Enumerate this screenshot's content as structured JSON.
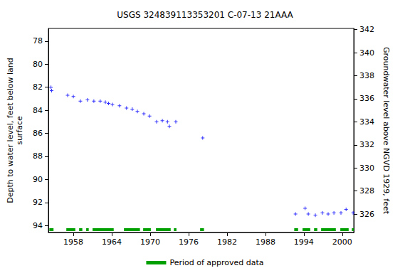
{
  "chart_data": {
    "type": "scatter",
    "title": "USGS 324839113353201 C-07-13 21AAA",
    "y_label": "Depth to water level, feet below land\nsurface",
    "y2_label": "Groundwater level above NGVD 1929, feet",
    "x": [
      1954.5,
      1954.6,
      1957.1,
      1958.0,
      1959.1,
      1960.2,
      1961.2,
      1962.2,
      1963.0,
      1963.5,
      1964.1,
      1965.2,
      1966.3,
      1967.2,
      1968.0,
      1969.0,
      1969.9,
      1971.0,
      1971.9,
      1972.7,
      1973.0,
      1974.0,
      1978.2,
      1992.7,
      1994.2,
      1994.7,
      1995.8,
      1996.9,
      1997.8,
      1998.7,
      1999.8,
      2000.6,
      2001.7
    ],
    "values": [
      82.0,
      82.3,
      82.7,
      82.8,
      83.2,
      83.1,
      83.2,
      83.2,
      83.3,
      83.4,
      83.5,
      83.6,
      83.8,
      83.9,
      84.1,
      84.3,
      84.5,
      85.0,
      84.9,
      85.0,
      85.4,
      85.0,
      86.4,
      93.0,
      92.5,
      93.0,
      93.1,
      92.9,
      93.0,
      92.9,
      92.9,
      92.6,
      92.9
    ],
    "color": "#0000ff",
    "marker": "plus",
    "approved_periods": {
      "name": "Period of approved data",
      "color": "#00a000",
      "ranges": [
        [
          1954.25,
          1954.9
        ],
        [
          1956.9,
          1958.3
        ],
        [
          1958.9,
          1959.4
        ],
        [
          1960.0,
          1960.4
        ],
        [
          1961.0,
          1964.3
        ],
        [
          1965.9,
          1968.4
        ],
        [
          1968.9,
          1970.1
        ],
        [
          1970.9,
          1973.2
        ],
        [
          1973.7,
          1974.1
        ],
        [
          1977.8,
          1978.4
        ],
        [
          1992.5,
          1993.1
        ],
        [
          1993.8,
          1995.0
        ],
        [
          1995.6,
          1996.1
        ],
        [
          1996.7,
          1999.0
        ],
        [
          1999.7,
          2001.0
        ],
        [
          2001.5,
          2001.8
        ]
      ]
    },
    "xlim": [
      1954.1,
      2001.8
    ],
    "xticks": [
      1958,
      1964,
      1970,
      1976,
      1982,
      1988,
      1994,
      2000
    ],
    "ylim": [
      94.6,
      76.9
    ],
    "yticks": [
      78,
      80,
      82,
      84,
      86,
      88,
      90,
      92,
      94
    ],
    "y2lim": [
      324.4,
      342.1
    ],
    "y2ticks": [
      326,
      328,
      330,
      332,
      334,
      336,
      338,
      340,
      342
    ],
    "grid": false,
    "legend": "bottom"
  }
}
